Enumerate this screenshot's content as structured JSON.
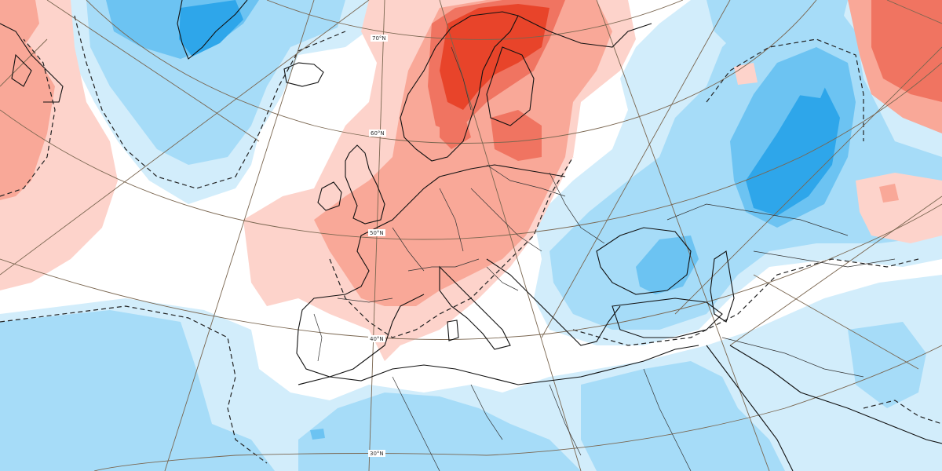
{
  "map": {
    "colors": {
      "background": "#ffffff",
      "positive_light": "#fdd3cb",
      "positive_mid": "#f9a898",
      "positive_strong": "#f07461",
      "positive_extreme": "#e8442a",
      "negative_light": "#d2edfb",
      "negative_mid": "#a6dcf8",
      "negative_strong": "#6cc3f2",
      "negative_extreme": "#2ea6ea",
      "coastline": "#111111",
      "borders": "#333333",
      "graticule": "#7a6650",
      "significance_contour": "#222222"
    },
    "latitude_labels": [
      {
        "id": "lat-70",
        "text": "70°N"
      },
      {
        "id": "lat-60",
        "text": "60°N"
      },
      {
        "id": "lat-50",
        "text": "50°N"
      },
      {
        "id": "lat-40",
        "text": "40°N"
      },
      {
        "id": "lat-30",
        "text": "30°N"
      }
    ]
  }
}
